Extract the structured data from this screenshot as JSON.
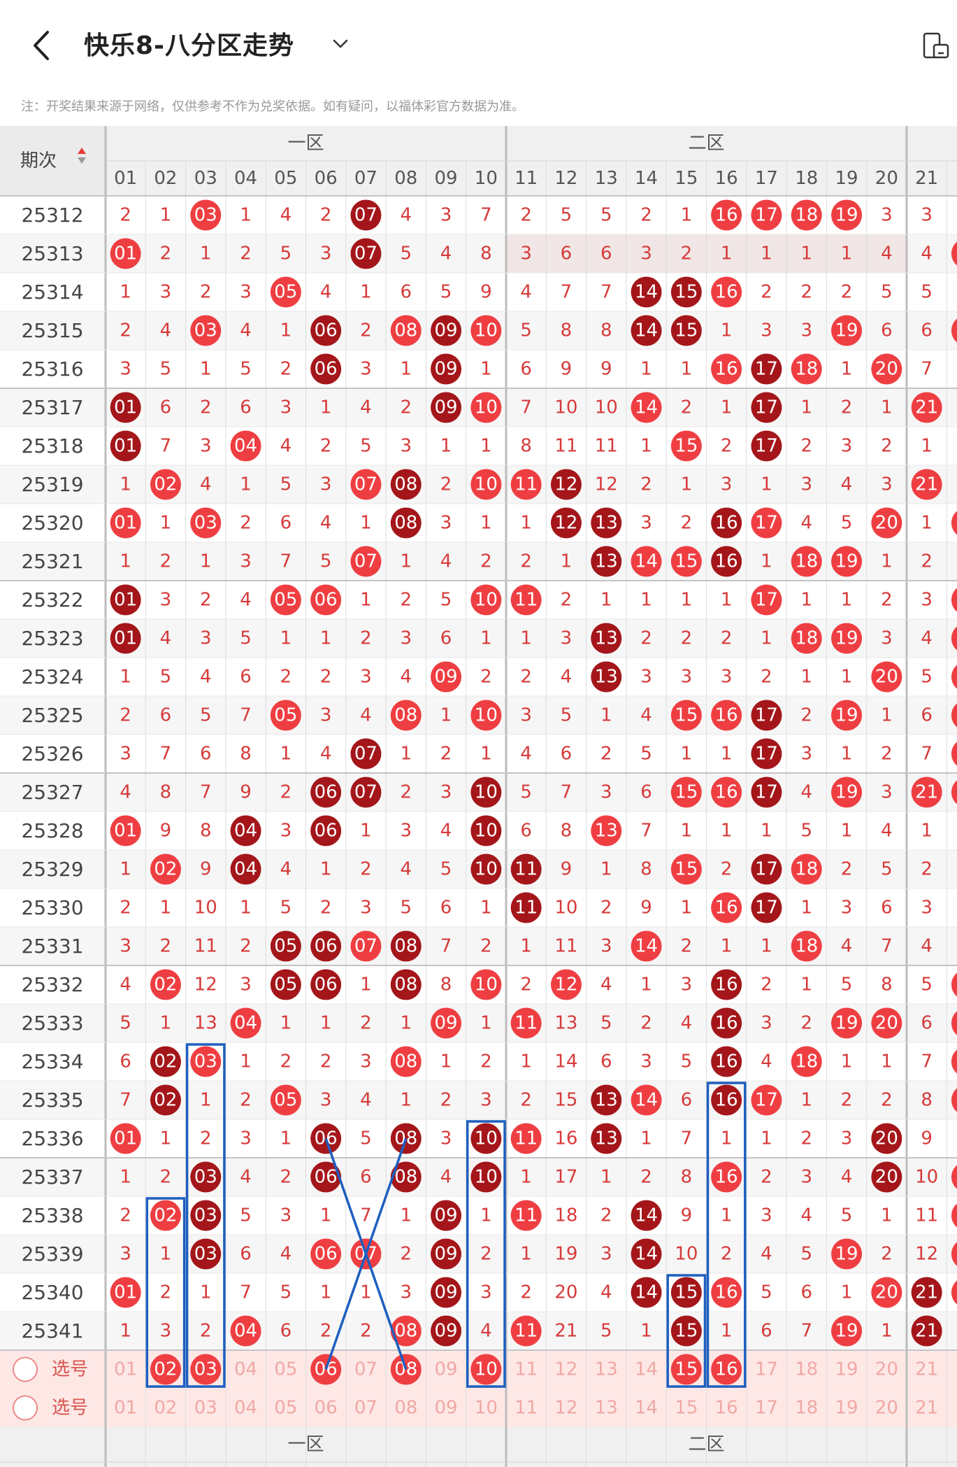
{
  "header": {
    "title": "快乐8-八分区走势",
    "notice": "注：开奖结果来源于网络，仅供参考不作为兑奖依据。如有疑问，以福体彩官方数据为准。"
  },
  "table": {
    "period_header": "期次",
    "zones": [
      "一区",
      "二区"
    ],
    "columns": [
      "01",
      "02",
      "03",
      "04",
      "05",
      "06",
      "07",
      "08",
      "09",
      "10",
      "11",
      "12",
      "13",
      "14",
      "15",
      "16",
      "17",
      "18",
      "19",
      "20",
      "21"
    ],
    "rows": [
      {
        "period": "25312",
        "cells": [
          "2",
          "1",
          "03",
          "1",
          "4",
          "2",
          "07",
          "4",
          "3",
          "7",
          "2",
          "5",
          "5",
          "2",
          "1",
          "16",
          "17",
          "18",
          "19",
          "3",
          "3"
        ]
      },
      {
        "period": "25313",
        "cells": [
          "01",
          "2",
          "1",
          "2",
          "5",
          "3",
          "07",
          "5",
          "4",
          "8",
          "3",
          "6",
          "6",
          "3",
          "2",
          "1",
          "1",
          "1",
          "1",
          "4",
          "4"
        ]
      },
      {
        "period": "25314",
        "cells": [
          "1",
          "3",
          "2",
          "3",
          "05",
          "4",
          "1",
          "6",
          "5",
          "9",
          "4",
          "7",
          "7",
          "14",
          "15",
          "16",
          "2",
          "2",
          "2",
          "5",
          "5"
        ]
      },
      {
        "period": "25315",
        "cells": [
          "2",
          "4",
          "03",
          "4",
          "1",
          "06",
          "2",
          "08",
          "09",
          "10",
          "5",
          "8",
          "8",
          "14",
          "15",
          "1",
          "3",
          "3",
          "19",
          "6",
          "6"
        ]
      },
      {
        "period": "25316",
        "cells": [
          "3",
          "5",
          "1",
          "5",
          "2",
          "06",
          "3",
          "1",
          "09",
          "1",
          "6",
          "9",
          "9",
          "1",
          "1",
          "16",
          "17",
          "18",
          "1",
          "20",
          "7"
        ]
      },
      {
        "period": "25317",
        "cells": [
          "01",
          "6",
          "2",
          "6",
          "3",
          "1",
          "4",
          "2",
          "09",
          "10",
          "7",
          "10",
          "10",
          "14",
          "2",
          "1",
          "17",
          "1",
          "2",
          "1",
          "21"
        ]
      },
      {
        "period": "25318",
        "cells": [
          "01",
          "7",
          "3",
          "04",
          "4",
          "2",
          "5",
          "3",
          "1",
          "1",
          "8",
          "11",
          "11",
          "1",
          "15",
          "2",
          "17",
          "2",
          "3",
          "2",
          "1"
        ]
      },
      {
        "period": "25319",
        "cells": [
          "1",
          "02",
          "4",
          "1",
          "5",
          "3",
          "07",
          "08",
          "2",
          "10",
          "11",
          "12",
          "12",
          "2",
          "1",
          "3",
          "1",
          "3",
          "4",
          "3",
          "21"
        ]
      },
      {
        "period": "25320",
        "cells": [
          "01",
          "1",
          "03",
          "2",
          "6",
          "4",
          "1",
          "08",
          "3",
          "1",
          "1",
          "12",
          "13",
          "3",
          "2",
          "16",
          "17",
          "4",
          "5",
          "20",
          "1"
        ]
      },
      {
        "period": "25321",
        "cells": [
          "1",
          "2",
          "1",
          "3",
          "7",
          "5",
          "07",
          "1",
          "4",
          "2",
          "2",
          "1",
          "13",
          "14",
          "15",
          "16",
          "1",
          "18",
          "19",
          "1",
          "2"
        ]
      },
      {
        "period": "25322",
        "cells": [
          "01",
          "3",
          "2",
          "4",
          "05",
          "06",
          "1",
          "2",
          "5",
          "10",
          "11",
          "2",
          "1",
          "1",
          "1",
          "1",
          "17",
          "1",
          "1",
          "2",
          "3"
        ]
      },
      {
        "period": "25323",
        "cells": [
          "01",
          "4",
          "3",
          "5",
          "1",
          "1",
          "2",
          "3",
          "6",
          "1",
          "1",
          "3",
          "13",
          "2",
          "2",
          "2",
          "1",
          "18",
          "19",
          "3",
          "4"
        ]
      },
      {
        "period": "25324",
        "cells": [
          "1",
          "5",
          "4",
          "6",
          "2",
          "2",
          "3",
          "4",
          "09",
          "2",
          "2",
          "4",
          "13",
          "3",
          "3",
          "3",
          "2",
          "1",
          "1",
          "20",
          "5"
        ]
      },
      {
        "period": "25325",
        "cells": [
          "2",
          "6",
          "5",
          "7",
          "05",
          "3",
          "4",
          "08",
          "1",
          "10",
          "3",
          "5",
          "1",
          "4",
          "15",
          "16",
          "17",
          "2",
          "19",
          "1",
          "6"
        ]
      },
      {
        "period": "25326",
        "cells": [
          "3",
          "7",
          "6",
          "8",
          "1",
          "4",
          "07",
          "1",
          "2",
          "1",
          "4",
          "6",
          "2",
          "5",
          "1",
          "1",
          "17",
          "3",
          "1",
          "2",
          "7"
        ]
      },
      {
        "period": "25327",
        "cells": [
          "4",
          "8",
          "7",
          "9",
          "2",
          "06",
          "07",
          "2",
          "3",
          "10",
          "5",
          "7",
          "3",
          "6",
          "15",
          "16",
          "17",
          "4",
          "19",
          "3",
          "21"
        ]
      },
      {
        "period": "25328",
        "cells": [
          "01",
          "9",
          "8",
          "04",
          "3",
          "06",
          "1",
          "3",
          "4",
          "10",
          "6",
          "8",
          "13",
          "7",
          "1",
          "1",
          "1",
          "5",
          "1",
          "4",
          "1"
        ]
      },
      {
        "period": "25329",
        "cells": [
          "1",
          "02",
          "9",
          "04",
          "4",
          "1",
          "2",
          "4",
          "5",
          "10",
          "11",
          "9",
          "1",
          "8",
          "15",
          "2",
          "17",
          "18",
          "2",
          "5",
          "2"
        ]
      },
      {
        "period": "25330",
        "cells": [
          "2",
          "1",
          "10",
          "1",
          "5",
          "2",
          "3",
          "5",
          "6",
          "1",
          "11",
          "10",
          "2",
          "9",
          "1",
          "16",
          "17",
          "1",
          "3",
          "6",
          "3"
        ]
      },
      {
        "period": "25331",
        "cells": [
          "3",
          "2",
          "11",
          "2",
          "05",
          "06",
          "07",
          "08",
          "7",
          "2",
          "1",
          "11",
          "3",
          "14",
          "2",
          "1",
          "1",
          "18",
          "4",
          "7",
          "4"
        ]
      },
      {
        "period": "25332",
        "cells": [
          "4",
          "02",
          "12",
          "3",
          "05",
          "06",
          "1",
          "08",
          "8",
          "10",
          "2",
          "12",
          "4",
          "1",
          "3",
          "16",
          "2",
          "1",
          "5",
          "8",
          "5"
        ]
      },
      {
        "period": "25333",
        "cells": [
          "5",
          "1",
          "13",
          "04",
          "1",
          "1",
          "2",
          "1",
          "09",
          "1",
          "11",
          "13",
          "5",
          "2",
          "4",
          "16",
          "3",
          "2",
          "19",
          "20",
          "6"
        ]
      },
      {
        "period": "25334",
        "cells": [
          "6",
          "02",
          "03",
          "1",
          "2",
          "2",
          "3",
          "08",
          "1",
          "2",
          "1",
          "14",
          "6",
          "3",
          "5",
          "16",
          "4",
          "18",
          "1",
          "1",
          "7"
        ]
      },
      {
        "period": "25335",
        "cells": [
          "7",
          "02",
          "1",
          "2",
          "05",
          "3",
          "4",
          "1",
          "2",
          "3",
          "2",
          "15",
          "13",
          "14",
          "6",
          "16",
          "17",
          "1",
          "2",
          "2",
          "8"
        ]
      },
      {
        "period": "25336",
        "cells": [
          "01",
          "1",
          "2",
          "3",
          "1",
          "06",
          "5",
          "08",
          "3",
          "10",
          "11",
          "16",
          "13",
          "1",
          "7",
          "1",
          "1",
          "2",
          "3",
          "20",
          "9"
        ]
      },
      {
        "period": "25337",
        "cells": [
          "1",
          "2",
          "03",
          "4",
          "2",
          "06",
          "6",
          "08",
          "4",
          "10",
          "1",
          "17",
          "1",
          "2",
          "8",
          "16",
          "2",
          "3",
          "4",
          "20",
          "10"
        ]
      },
      {
        "period": "25338",
        "cells": [
          "2",
          "02",
          "03",
          "5",
          "3",
          "1",
          "7",
          "1",
          "09",
          "1",
          "11",
          "18",
          "2",
          "14",
          "9",
          "1",
          "3",
          "4",
          "5",
          "1",
          "11"
        ]
      },
      {
        "period": "25339",
        "cells": [
          "3",
          "1",
          "03",
          "6",
          "4",
          "06",
          "07",
          "2",
          "09",
          "2",
          "1",
          "19",
          "3",
          "14",
          "10",
          "2",
          "4",
          "5",
          "19",
          "2",
          "12"
        ]
      },
      {
        "period": "25340",
        "cells": [
          "01",
          "2",
          "1",
          "7",
          "5",
          "1",
          "1",
          "3",
          "09",
          "3",
          "2",
          "20",
          "4",
          "14",
          "15",
          "16",
          "5",
          "6",
          "1",
          "20",
          "21"
        ]
      },
      {
        "period": "25341",
        "cells": [
          "1",
          "3",
          "2",
          "04",
          "6",
          "2",
          "2",
          "08",
          "09",
          "4",
          "11",
          "21",
          "5",
          "1",
          "15",
          "1",
          "6",
          "7",
          "19",
          "1",
          "21"
        ]
      }
    ],
    "select_label": "选号",
    "select_rows": 2
  },
  "colors": {
    "red_ball": "#ef3e42",
    "dark_ball": "#a4161a",
    "miss_text": "#d73a3a",
    "header_bg": "#f0f0f0",
    "select_bg": "#fde8e6",
    "annotation": "#1e5fbf"
  }
}
